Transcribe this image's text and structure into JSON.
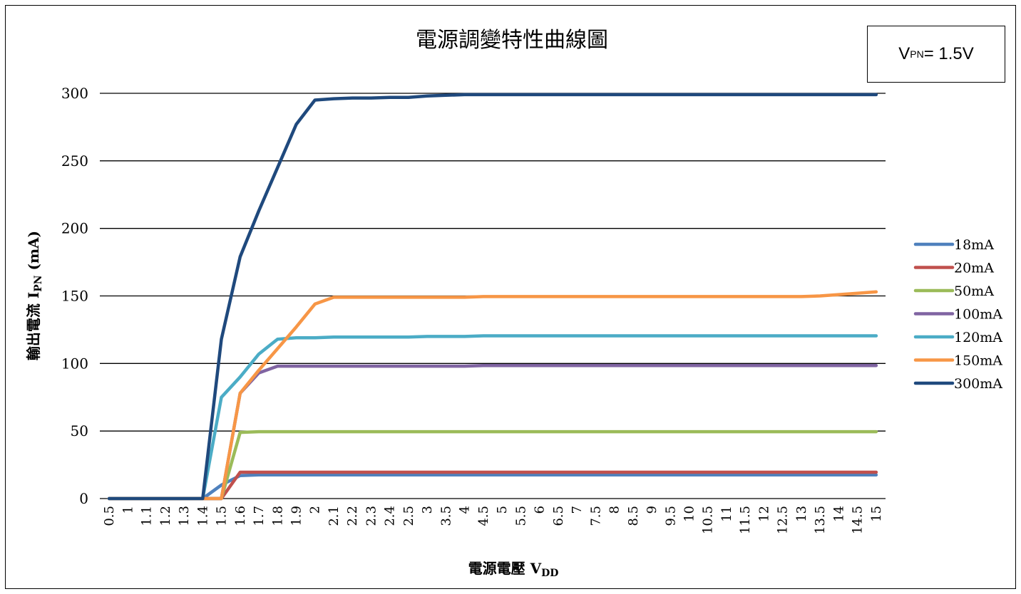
{
  "chart_data": {
    "type": "line",
    "title": "電源調變特性曲線圖",
    "annotation": {
      "prefix": "V",
      "sub": "PN",
      "suffix": " = 1.5V"
    },
    "xlabel": {
      "main": "電源電壓 V",
      "sub": "DD"
    },
    "ylabel": {
      "main": "輸出電流 I",
      "sub": "PN",
      "suffix": " (mA)"
    },
    "ylim": [
      0,
      300
    ],
    "yticks": [
      "0",
      "50",
      "100",
      "150",
      "200",
      "250",
      "300"
    ],
    "grid": "horizontal",
    "legend_position": "right",
    "x": [
      "0.5",
      "1",
      "1.1",
      "1.2",
      "1.3",
      "1.4",
      "1.5",
      "1.6",
      "1.7",
      "1.8",
      "1.9",
      "2",
      "2.1",
      "2.2",
      "2.3",
      "2.4",
      "2.5",
      "3",
      "3.5",
      "4",
      "4.5",
      "5",
      "5.5",
      "6",
      "6.5",
      "7",
      "7.5",
      "8",
      "8.5",
      "9",
      "9.5",
      "10",
      "10.5",
      "11",
      "11.5",
      "12",
      "12.5",
      "13",
      "13.5",
      "14",
      "14.5",
      "15"
    ],
    "series": [
      {
        "name": "18mA",
        "color": "#4F81BD",
        "values": [
          0,
          0,
          0,
          0,
          0,
          0,
          10,
          17,
          17.5,
          17.5,
          17.5,
          17.5,
          17.5,
          17.5,
          17.5,
          17.5,
          17.5,
          17.5,
          17.5,
          17.5,
          17.5,
          17.5,
          17.5,
          17.5,
          17.5,
          17.5,
          17.5,
          17.5,
          17.5,
          17.5,
          17.5,
          17.5,
          17.5,
          17.5,
          17.5,
          17.5,
          17.5,
          17.5,
          17.5,
          17.5,
          17.5,
          17.5
        ]
      },
      {
        "name": "20mA",
        "color": "#C0504D",
        "values": [
          0,
          0,
          0,
          0,
          0,
          0,
          0,
          19.5,
          19.5,
          19.5,
          19.5,
          19.5,
          19.5,
          19.5,
          19.5,
          19.5,
          19.5,
          19.5,
          19.5,
          19.5,
          19.5,
          19.5,
          19.5,
          19.5,
          19.5,
          19.5,
          19.5,
          19.5,
          19.5,
          19.5,
          19.5,
          19.5,
          19.5,
          19.5,
          19.5,
          19.5,
          19.5,
          19.5,
          19.5,
          19.5,
          19.5,
          19.5
        ]
      },
      {
        "name": "50mA",
        "color": "#9BBB59",
        "values": [
          0,
          0,
          0,
          0,
          0,
          0,
          0,
          49,
          49.5,
          49.5,
          49.5,
          49.5,
          49.5,
          49.5,
          49.5,
          49.5,
          49.5,
          49.5,
          49.5,
          49.5,
          49.5,
          49.5,
          49.5,
          49.5,
          49.5,
          49.5,
          49.5,
          49.5,
          49.5,
          49.5,
          49.5,
          49.5,
          49.5,
          49.5,
          49.5,
          49.5,
          49.5,
          49.5,
          49.5,
          49.5,
          49.5,
          49.5
        ]
      },
      {
        "name": "100mA",
        "color": "#8064A2",
        "values": [
          0,
          0,
          0,
          0,
          0,
          0,
          0,
          78,
          93,
          98,
          98,
          98,
          98,
          98,
          98,
          98,
          98,
          98,
          98,
          98,
          98.5,
          98.5,
          98.5,
          98.5,
          98.5,
          98.5,
          98.5,
          98.5,
          98.5,
          98.5,
          98.5,
          98.5,
          98.5,
          98.5,
          98.5,
          98.5,
          98.5,
          98.5,
          98.5,
          98.5,
          98.5,
          98.5
        ]
      },
      {
        "name": "120mA",
        "color": "#4BACC6",
        "values": [
          0,
          0,
          0,
          0,
          0,
          0,
          75,
          90,
          107,
          118,
          119,
          119,
          119.5,
          119.5,
          119.5,
          119.5,
          119.5,
          120,
          120,
          120,
          120.5,
          120.5,
          120.5,
          120.5,
          120.5,
          120.5,
          120.5,
          120.5,
          120.5,
          120.5,
          120.5,
          120.5,
          120.5,
          120.5,
          120.5,
          120.5,
          120.5,
          120.5,
          120.5,
          120.5,
          120.5,
          120.5
        ]
      },
      {
        "name": "150mA",
        "color": "#F79646",
        "values": [
          0,
          0,
          0,
          0,
          0,
          0,
          0,
          78,
          95,
          111,
          127,
          144,
          149,
          149,
          149,
          149,
          149,
          149,
          149,
          149,
          149.5,
          149.5,
          149.5,
          149.5,
          149.5,
          149.5,
          149.5,
          149.5,
          149.5,
          149.5,
          149.5,
          149.5,
          149.5,
          149.5,
          149.5,
          149.5,
          149.5,
          149.5,
          150,
          151,
          152,
          153
        ]
      },
      {
        "name": "300mA",
        "color": "#1F497D",
        "values": [
          0,
          0,
          0,
          0,
          0,
          0,
          118,
          179,
          213,
          245,
          277,
          295,
          296,
          296.5,
          296.5,
          297,
          297,
          298,
          298.5,
          299,
          299,
          299,
          299,
          299,
          299,
          299,
          299,
          299,
          299,
          299,
          299,
          299,
          299,
          299,
          299,
          299,
          299,
          299,
          299,
          299,
          299,
          299
        ]
      }
    ]
  }
}
